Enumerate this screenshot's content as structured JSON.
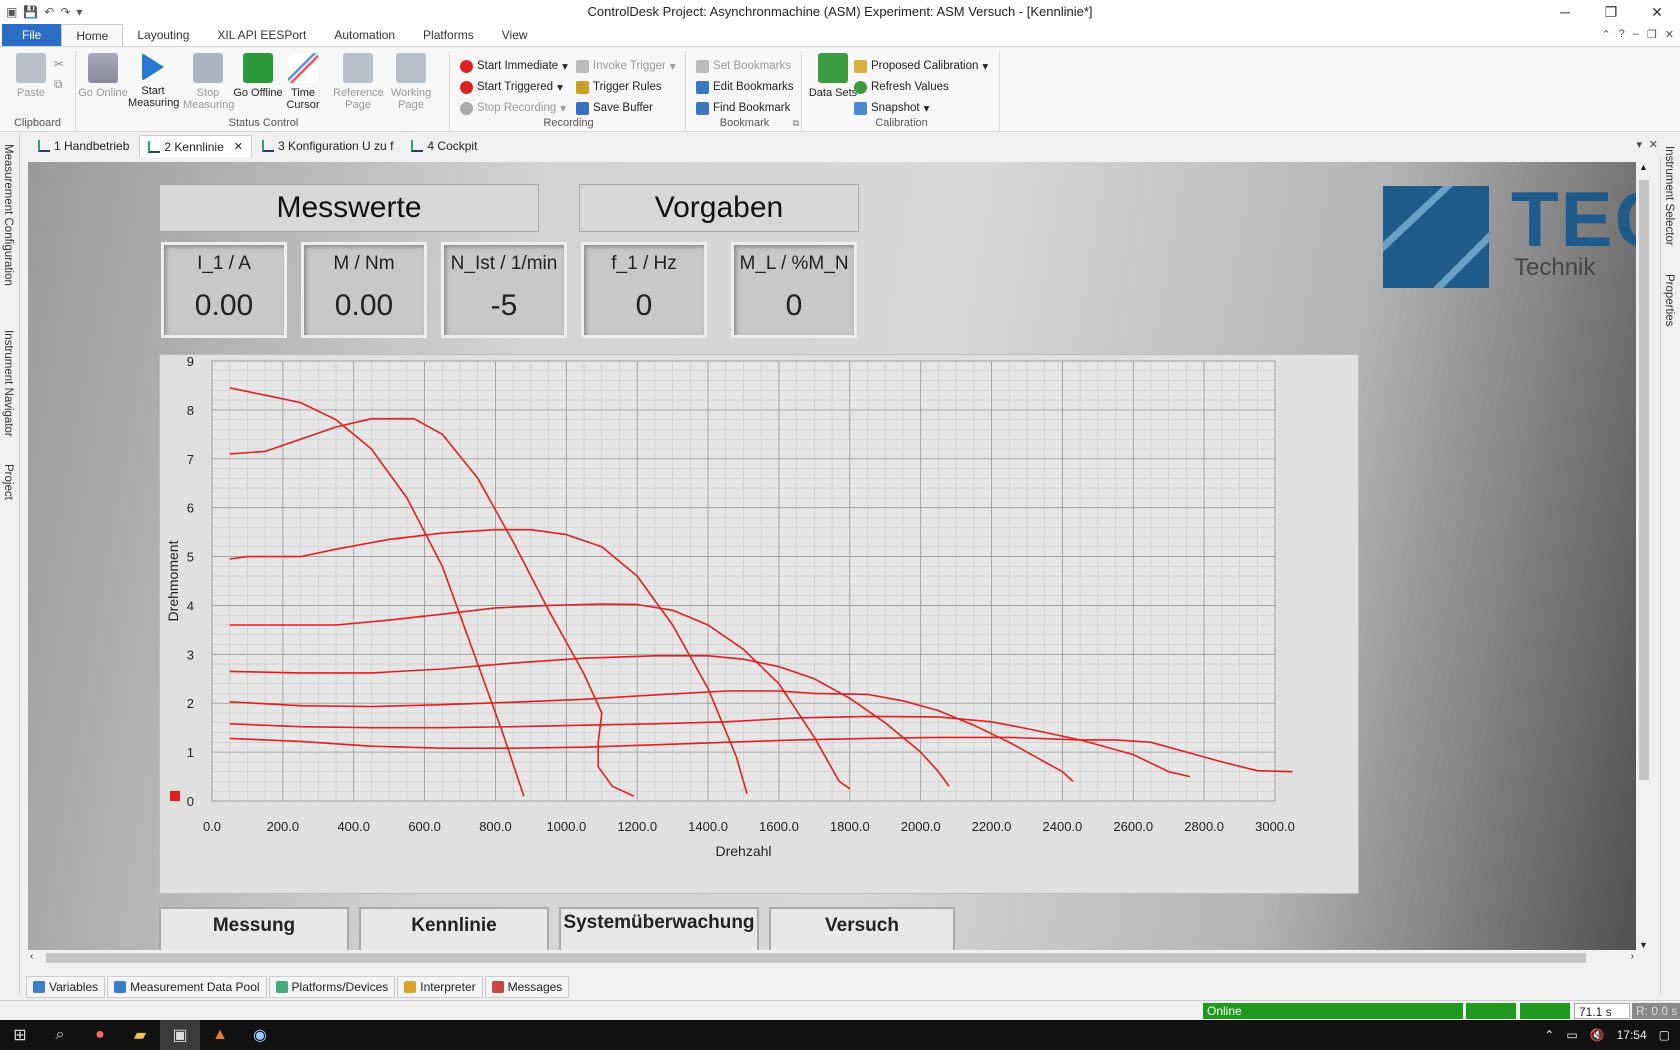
{
  "window": {
    "title": "ControlDesk  Project: Asynchronmachine (ASM)  Experiment: ASM Versuch - [Kennlinie*]"
  },
  "menu": {
    "tabs": [
      "File",
      "Home",
      "Layouting",
      "XIL API EESPort",
      "Automation",
      "Platforms",
      "View"
    ],
    "active": "Home"
  },
  "ribbon": {
    "clipboard": {
      "paste": "Paste",
      "label": "Clipboard"
    },
    "status_control": {
      "go_online": "Go Online",
      "start_measuring": "Start Measuring",
      "stop_measuring": "Stop Measuring",
      "go_offline": "Go Offline",
      "time_cursor": "Time Cursor",
      "reference_page": "Reference Page",
      "working_page": "Working Page",
      "label": "Status Control"
    },
    "recording": {
      "start_immediate": "Start Immediate",
      "start_triggered": "Start Triggered",
      "stop_recording": "Stop Recording",
      "invoke_trigger": "Invoke Trigger",
      "trigger_rules": "Trigger Rules",
      "save_buffer": "Save Buffer",
      "label": "Recording"
    },
    "bookmark": {
      "set": "Set Bookmarks",
      "edit": "Edit Bookmarks",
      "find": "Find Bookmark",
      "label": "Bookmark"
    },
    "calibration": {
      "data_sets": "Data Sets",
      "proposed": "Proposed Calibration",
      "refresh": "Refresh Values",
      "snapshot": "Snapshot",
      "label": "Calibration"
    }
  },
  "doc_tabs": [
    "1 Handbetrieb",
    "2 Kennlinie",
    "3 Konfiguration U zu f",
    "4 Cockpit"
  ],
  "side_panels": {
    "left": [
      "Measurement Configuration",
      "Instrument Navigator",
      "Project"
    ],
    "right": [
      "Instrument Selector",
      "Properties"
    ]
  },
  "layout": {
    "messwerte": "Messwerte",
    "vorgaben": "Vorgaben",
    "values": [
      {
        "label": "I_1 / A",
        "value": "0.00"
      },
      {
        "label": "M / Nm",
        "value": "0.00"
      },
      {
        "label": "N_Ist / 1/min",
        "value": "-5"
      },
      {
        "label": "f_1 / Hz",
        "value": "0"
      },
      {
        "label": "M_L / %M_N",
        "value": "0"
      }
    ],
    "logo_text": "TEC",
    "logo_sub": "Technik",
    "buttons": [
      "Messung",
      "Kennlinie",
      "Systemüberwachung",
      "Versuch"
    ]
  },
  "chart_data": {
    "type": "line",
    "xlabel": "Drehzahl",
    "ylabel": "Drehmoment",
    "xlim": [
      0,
      3000
    ],
    "ylim": [
      0,
      9
    ],
    "x_ticks": [
      "0.0",
      "200.0",
      "400.0",
      "600.0",
      "800.0",
      "1000.0",
      "1200.0",
      "1400.0",
      "1600.0",
      "1800.0",
      "2000.0",
      "2200.0",
      "2400.0",
      "2600.0",
      "2800.0",
      "3000.0"
    ],
    "y_ticks": [
      "0",
      "1",
      "2",
      "3",
      "4",
      "5",
      "6",
      "7",
      "8",
      "9"
    ],
    "grid": true,
    "color": "#e02020",
    "series": [
      {
        "points": [
          [
            50,
            8.45
          ],
          [
            150,
            8.3
          ],
          [
            250,
            8.15
          ],
          [
            350,
            7.8
          ],
          [
            450,
            7.2
          ],
          [
            550,
            6.2
          ],
          [
            650,
            4.8
          ],
          [
            750,
            2.8
          ],
          [
            820,
            1.4
          ],
          [
            880,
            0.1
          ]
        ]
      },
      {
        "points": [
          [
            50,
            7.1
          ],
          [
            150,
            7.15
          ],
          [
            250,
            7.4
          ],
          [
            350,
            7.65
          ],
          [
            450,
            7.82
          ],
          [
            570,
            7.82
          ],
          [
            650,
            7.5
          ],
          [
            750,
            6.6
          ],
          [
            850,
            5.3
          ],
          [
            950,
            3.9
          ],
          [
            1050,
            2.6
          ],
          [
            1100,
            1.8
          ],
          [
            1090,
            1.2
          ],
          [
            1090,
            0.7
          ],
          [
            1130,
            0.3
          ],
          [
            1190,
            0.1
          ]
        ]
      },
      {
        "points": [
          [
            50,
            4.95
          ],
          [
            100,
            5.0
          ],
          [
            250,
            5.0
          ],
          [
            350,
            5.15
          ],
          [
            500,
            5.35
          ],
          [
            650,
            5.48
          ],
          [
            800,
            5.55
          ],
          [
            900,
            5.55
          ],
          [
            1000,
            5.45
          ],
          [
            1100,
            5.2
          ],
          [
            1200,
            4.6
          ],
          [
            1300,
            3.6
          ],
          [
            1400,
            2.3
          ],
          [
            1480,
            0.9
          ],
          [
            1510,
            0.15
          ]
        ]
      },
      {
        "points": [
          [
            50,
            3.6
          ],
          [
            200,
            3.6
          ],
          [
            350,
            3.6
          ],
          [
            500,
            3.7
          ],
          [
            650,
            3.82
          ],
          [
            800,
            3.95
          ],
          [
            950,
            4.0
          ],
          [
            1100,
            4.03
          ],
          [
            1200,
            4.02
          ],
          [
            1300,
            3.9
          ],
          [
            1400,
            3.6
          ],
          [
            1500,
            3.1
          ],
          [
            1600,
            2.4
          ],
          [
            1700,
            1.3
          ],
          [
            1770,
            0.4
          ],
          [
            1800,
            0.25
          ]
        ]
      },
      {
        "points": [
          [
            50,
            2.65
          ],
          [
            250,
            2.62
          ],
          [
            450,
            2.62
          ],
          [
            650,
            2.7
          ],
          [
            850,
            2.82
          ],
          [
            1050,
            2.92
          ],
          [
            1250,
            2.97
          ],
          [
            1400,
            2.97
          ],
          [
            1500,
            2.9
          ],
          [
            1600,
            2.75
          ],
          [
            1700,
            2.5
          ],
          [
            1800,
            2.1
          ],
          [
            1900,
            1.6
          ],
          [
            2000,
            1.0
          ],
          [
            2050,
            0.6
          ],
          [
            2070,
            0.4
          ],
          [
            2080,
            0.3
          ]
        ]
      },
      {
        "points": [
          [
            50,
            2.03
          ],
          [
            250,
            1.95
          ],
          [
            450,
            1.93
          ],
          [
            650,
            1.97
          ],
          [
            850,
            2.02
          ],
          [
            1050,
            2.08
          ],
          [
            1250,
            2.17
          ],
          [
            1450,
            2.25
          ],
          [
            1600,
            2.25
          ],
          [
            1700,
            2.2
          ],
          [
            1850,
            2.18
          ],
          [
            1950,
            2.05
          ],
          [
            2050,
            1.85
          ],
          [
            2150,
            1.55
          ],
          [
            2250,
            1.2
          ],
          [
            2350,
            0.8
          ],
          [
            2400,
            0.6
          ],
          [
            2430,
            0.4
          ]
        ]
      },
      {
        "points": [
          [
            50,
            1.58
          ],
          [
            250,
            1.52
          ],
          [
            450,
            1.5
          ],
          [
            650,
            1.5
          ],
          [
            850,
            1.52
          ],
          [
            1050,
            1.55
          ],
          [
            1250,
            1.58
          ],
          [
            1450,
            1.62
          ],
          [
            1650,
            1.7
          ],
          [
            1850,
            1.73
          ],
          [
            2050,
            1.72
          ],
          [
            2200,
            1.62
          ],
          [
            2300,
            1.48
          ],
          [
            2450,
            1.25
          ],
          [
            2600,
            0.95
          ],
          [
            2700,
            0.6
          ],
          [
            2760,
            0.5
          ]
        ]
      },
      {
        "points": [
          [
            50,
            1.28
          ],
          [
            250,
            1.22
          ],
          [
            450,
            1.12
          ],
          [
            650,
            1.08
          ],
          [
            850,
            1.08
          ],
          [
            1050,
            1.1
          ],
          [
            1250,
            1.15
          ],
          [
            1450,
            1.2
          ],
          [
            1650,
            1.25
          ],
          [
            1850,
            1.28
          ],
          [
            2050,
            1.3
          ],
          [
            2250,
            1.3
          ],
          [
            2450,
            1.25
          ],
          [
            2550,
            1.25
          ],
          [
            2650,
            1.2
          ],
          [
            2750,
            1.0
          ],
          [
            2850,
            0.8
          ],
          [
            2950,
            0.62
          ],
          [
            3050,
            0.6
          ]
        ]
      }
    ]
  },
  "bottom_tabs": [
    "Variables",
    "Measurement Data Pool",
    "Platforms/Devices",
    "Interpreter",
    "Messages"
  ],
  "status": {
    "online": "Online",
    "time": "71.1 s",
    "rate": "R: 0.0 s"
  },
  "taskbar": {
    "clock": "17:54"
  }
}
